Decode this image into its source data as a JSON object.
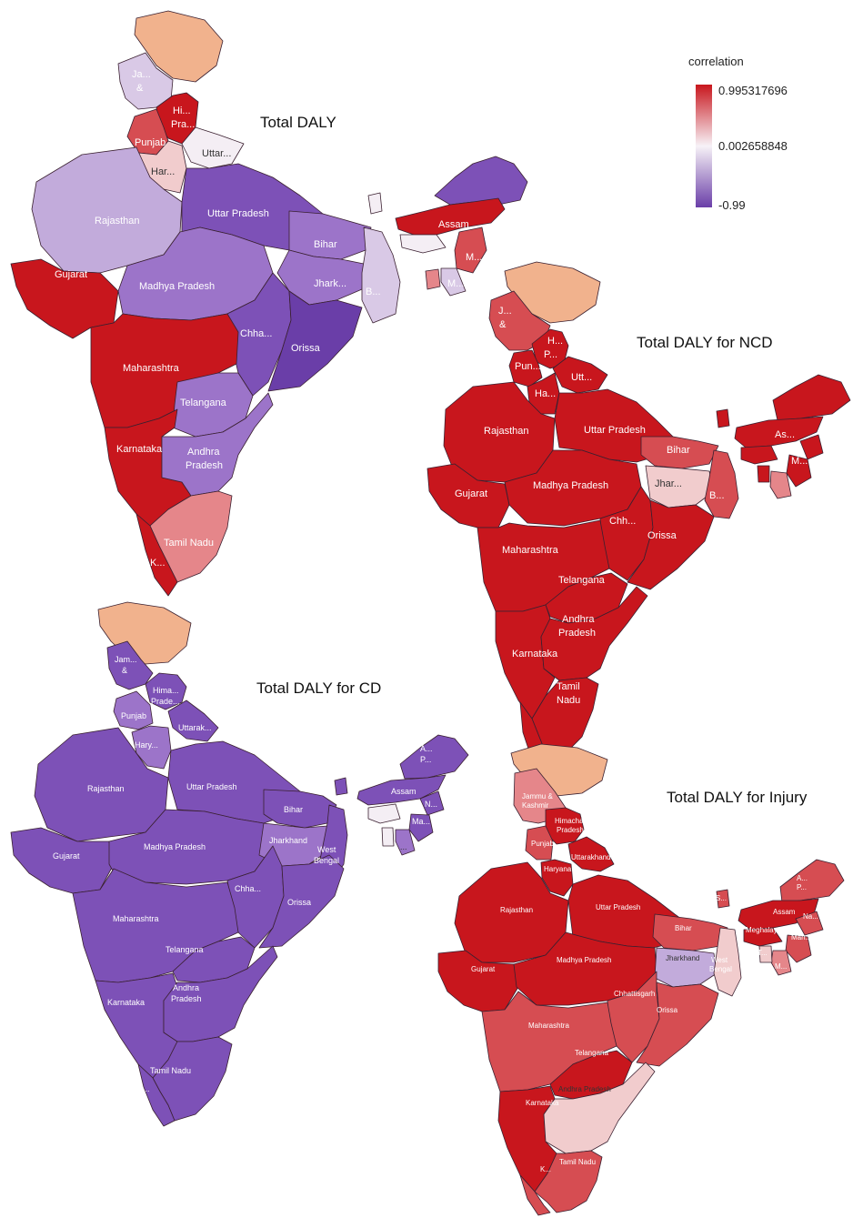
{
  "colors": {
    "jk_disputed": "#f1b28d",
    "red_strong": "#c8161d",
    "red_mid": "#d64d52",
    "red_light": "#e5868a",
    "pink_pale": "#f1cccd",
    "white_mid": "#f4eef4",
    "lav_pale": "#d9c9e6",
    "lav": "#c2abdb",
    "purple_mid": "#9c74c9",
    "purple": "#7d51b7",
    "purple_dark": "#6a3ea8"
  },
  "legend": {
    "title": "correlation",
    "max_label": "0.995317696",
    "mid_label": "0.002658848",
    "min_label": "-0.99",
    "max_color": "#c8161d",
    "mid_color": "#f7f2f7",
    "min_color": "#6a3ea8"
  },
  "maps": [
    {
      "title": "Total DALY",
      "labels": {
        "jk1": "Ja...",
        "jk2": "&",
        "hp1": "Hi...",
        "hp2": "Pra...",
        "pb": "Punjab",
        "uk": "Uttar...",
        "hr": "Har...",
        "rj": "Rajasthan",
        "up": "Uttar Pradesh",
        "br": "Bihar",
        "as": "Assam",
        "gj": "Gujarat",
        "mp": "Madhya Pradesh",
        "jh": "Jhark...",
        "wb": "B...",
        "ml": "M...",
        "mz": "M...",
        "cg": "Chha...",
        "od": "Orissa",
        "mh": "Maharashtra",
        "tg": "Telangana",
        "ka": "Karnataka",
        "ap1": "Andhra",
        "ap2": "Pradesh",
        "tn": "Tamil Nadu",
        "kl": "K..."
      }
    },
    {
      "title": "Total DALY for NCD",
      "labels": {
        "jk1": "J...",
        "jk2": "&",
        "hp1": "H...",
        "hp2": "P...",
        "pb": "Pun...",
        "uk": "Utt...",
        "hr": "Ha...",
        "rj": "Rajasthan",
        "up": "Uttar Pradesh",
        "br": "Bihar",
        "as": "As...",
        "gj": "Gujarat",
        "mp": "Madhya Pradesh",
        "jh": "Jhar...",
        "wb": "B...",
        "ml": "M...",
        "cg": "Chh...",
        "od": "Orissa",
        "mh": "Maharashtra",
        "tg": "Telangana",
        "ap1": "Andhra",
        "ap2": "Pradesh",
        "ka": "Karnataka",
        "tn1": "Tamil",
        "tn2": "Nadu"
      }
    },
    {
      "title": "Total DALY for CD",
      "labels": {
        "jk1": "Jam...",
        "jk2": "&",
        "hp1": "Hima...",
        "hp2": "Prade...",
        "pb": "Punjab",
        "uk": "Uttarak...",
        "hr": "Hary...",
        "rj": "Rajasthan",
        "up": "Uttar Pradesh",
        "br": "Bihar",
        "ar1": "A...",
        "ar2": "P...",
        "as": "Assam",
        "nl": "N...",
        "mn": "Ma...",
        "ml": "...",
        "gj": "Gujarat",
        "mp": "Madhya Pradesh",
        "jh": "Jharkhand",
        "wb1": "West",
        "wb2": "Bengal",
        "cg": "Chha...",
        "od": "Orissa",
        "mh": "Maharashtra",
        "tg": "Telangana",
        "ap1": "Andhra",
        "ap2": "Pradesh",
        "ka": "Karnataka",
        "tn": "Tamil Nadu",
        "kl": "Ke..."
      }
    },
    {
      "title": "Total DALY for Injury",
      "labels": {
        "jk1": "Jammu &",
        "jk2": "Kashmir",
        "hp1": "Himachal",
        "hp2": "Pradesh",
        "pb": "Punjab",
        "uk": "Uttarakhand",
        "hr": "Haryana",
        "rj": "Rajasthan",
        "up": "Uttar Pradesh",
        "br": "Bihar",
        "sk": "S...",
        "ar1": "A...",
        "ar2": "P...",
        "as": "Assam",
        "nl": "Na...",
        "ml": "Meghalaya",
        "mn": "Man...",
        "tr": "T...",
        "mz": "M...",
        "gj": "Gujarat",
        "mp": "Madhya Pradesh",
        "jh": "Jharkhand",
        "wb1": "West",
        "wb2": "Bengal",
        "cg": "Chhattisgarh",
        "od": "Orissa",
        "mh": "Maharashtra",
        "tg": "Telangana",
        "ap": "Andhra Pradesh",
        "ka": "Karnataka",
        "tn": "Tamil Nadu",
        "kl": "K..."
      }
    }
  ]
}
